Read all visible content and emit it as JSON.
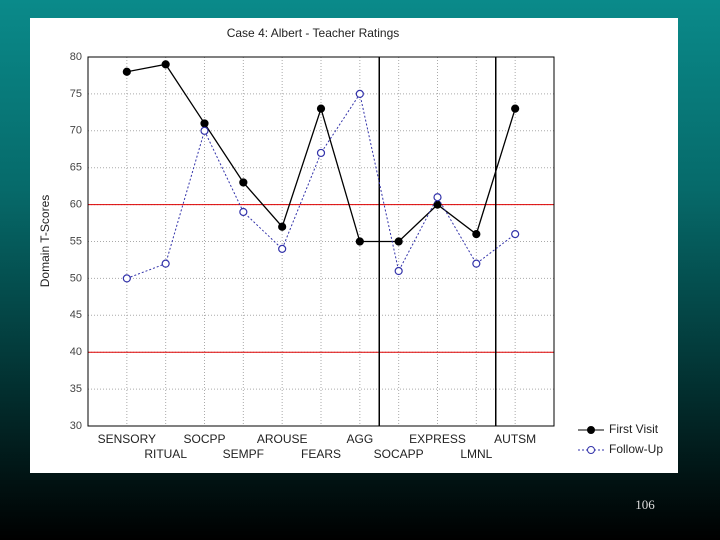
{
  "chart_data": {
    "type": "line",
    "title": "Case 4: Albert - Teacher Ratings",
    "y_label": "Domain T-Scores",
    "categories": [
      "SENSORY",
      "RITUAL",
      "SOCPP",
      "SEMPF",
      "AROUSE",
      "FEARS",
      "AGG",
      "SOCAPP",
      "EXPRESS",
      "LMNL",
      "AUTSM"
    ],
    "series": [
      {
        "name": "First Visit",
        "color": "#000000",
        "marker": "filled",
        "dash": "solid",
        "values": [
          78,
          79,
          71,
          63,
          57,
          73,
          55,
          55,
          60,
          56,
          73
        ]
      },
      {
        "name": "Follow-Up",
        "color": "#3333aa",
        "marker": "open",
        "dash": "dotted",
        "values": [
          50,
          52,
          70,
          59,
          54,
          67,
          75,
          51,
          61,
          52,
          56
        ]
      }
    ],
    "ylim": [
      30,
      80
    ],
    "yticks": [
      30,
      35,
      40,
      45,
      50,
      55,
      60,
      65,
      70,
      75,
      80
    ],
    "hlines": [
      60,
      40
    ],
    "hline_color": "#dd0000",
    "grid": true,
    "legend": "lower right"
  },
  "page_number": "106"
}
